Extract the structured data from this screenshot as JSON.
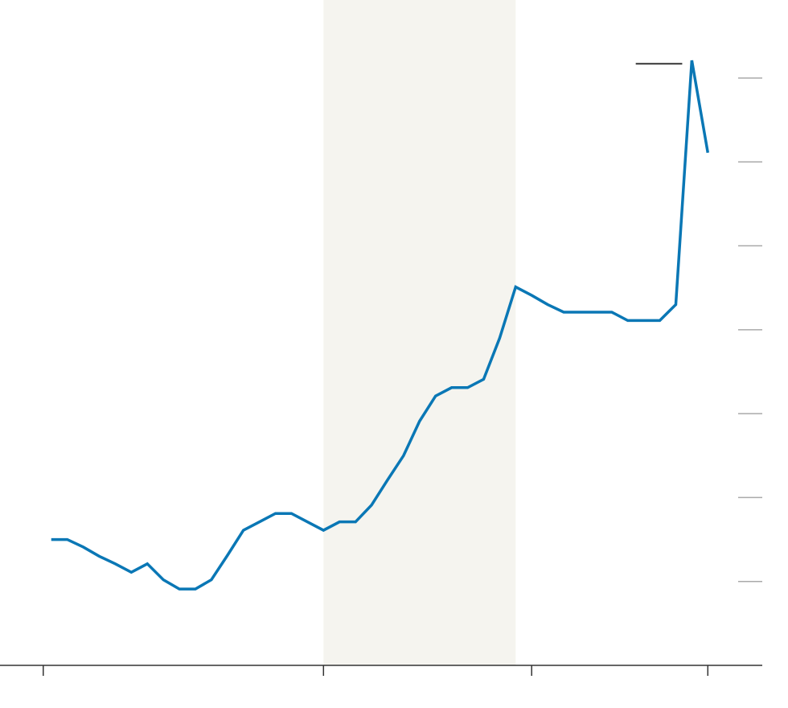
{
  "chart_data": {
    "type": "line",
    "x": [
      0,
      1,
      2,
      3,
      4,
      5,
      6,
      7,
      8,
      9,
      10,
      11,
      12,
      13,
      14,
      15,
      16,
      17,
      18,
      19,
      20,
      21,
      22,
      23,
      24,
      25,
      26,
      27,
      28,
      29,
      30,
      31,
      32,
      33,
      34,
      35,
      36,
      37,
      38,
      39,
      40,
      41
    ],
    "series": [
      {
        "color": "#0a77b5",
        "values": [
          1.5,
          1.5,
          1.41,
          1.3,
          1.21,
          1.11,
          1.21,
          1.02,
          0.91,
          0.91,
          1.02,
          1.31,
          1.61,
          1.71,
          1.81,
          1.81,
          1.71,
          1.61,
          1.71,
          1.71,
          1.91,
          2.21,
          2.5,
          2.91,
          3.21,
          3.31,
          3.31,
          3.41,
          3.9,
          4.51,
          4.41,
          4.3,
          4.21,
          4.21,
          4.21,
          4.21,
          4.11,
          4.11,
          4.11,
          4.3,
          7.21,
          6.11
        ]
      }
    ],
    "xlim": [
      -3.2,
      44.4
    ],
    "ylim": [
      0,
      7.93
    ],
    "xticks": [
      -0.5,
      17,
      30,
      41
    ],
    "yticks": [
      1,
      2,
      3,
      4,
      5,
      6,
      7
    ],
    "shade": {
      "x": [
        17,
        29
      ],
      "color": "#f5f4ef"
    },
    "reference": {
      "value": 7.17,
      "x": [
        36.5,
        39.4
      ],
      "color": "#333333"
    },
    "grid": true
  }
}
